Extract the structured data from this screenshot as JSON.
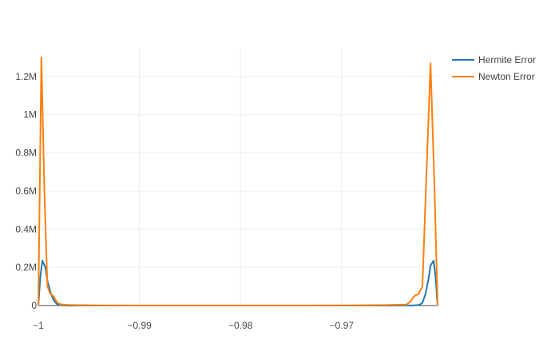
{
  "chart_data": {
    "type": "line",
    "title": "",
    "xlabel": "",
    "ylabel": "",
    "xlim": [
      -1.0,
      -0.9605
    ],
    "ylim": [
      0,
      1350000
    ],
    "grid": true,
    "legend_position": "top-right",
    "x_ticks": [
      {
        "value": -1.0,
        "label": "−1"
      },
      {
        "value": -0.99,
        "label": "−0.99"
      },
      {
        "value": -0.98,
        "label": "−0.98"
      },
      {
        "value": -0.97,
        "label": "−0.97"
      }
    ],
    "y_ticks": [
      {
        "value": 0,
        "label": "0"
      },
      {
        "value": 200000,
        "label": "0.2M"
      },
      {
        "value": 400000,
        "label": "0.4M"
      },
      {
        "value": 600000,
        "label": "0.6M"
      },
      {
        "value": 800000,
        "label": "0.8M"
      },
      {
        "value": 1000000,
        "label": "1M"
      },
      {
        "value": 1200000,
        "label": "1.2M"
      }
    ],
    "series": [
      {
        "name": "Hermite Error",
        "color": "#1f77b4",
        "x": [
          -1.0,
          -0.9998,
          -0.9996,
          -0.9993,
          -0.9991,
          -0.9988,
          -0.9985,
          -0.9982,
          -0.998,
          -0.9976,
          -0.997,
          -0.996,
          -0.994,
          -0.99,
          -0.98,
          -0.97,
          -0.965,
          -0.963,
          -0.9623,
          -0.962,
          -0.9617,
          -0.9614,
          -0.9612,
          -0.9609,
          -0.9607,
          -0.9605
        ],
        "y": [
          0,
          150000,
          235000,
          200000,
          130000,
          70000,
          30000,
          10000,
          3000,
          800,
          200,
          50,
          10,
          0,
          0,
          0,
          10,
          500,
          3000,
          15000,
          60000,
          140000,
          210000,
          235000,
          150000,
          0
        ]
      },
      {
        "name": "Newton Error",
        "color": "#ff7f0e",
        "x": [
          -1.0,
          -0.9997,
          -0.9994,
          -0.9991,
          -0.9988,
          -0.9985,
          -0.9982,
          -0.9979,
          -0.9976,
          -0.997,
          -0.996,
          -0.994,
          -0.99,
          -0.98,
          -0.97,
          -0.966,
          -0.9636,
          -0.9632,
          -0.9628,
          -0.9624,
          -0.962,
          -0.9616,
          -0.9612,
          -0.9608,
          -0.9605
        ],
        "y": [
          0,
          1300000,
          600000,
          100000,
          60000,
          50000,
          20000,
          8000,
          5000,
          3000,
          2000,
          1000,
          500,
          500,
          800,
          2000,
          5000,
          20000,
          50000,
          60000,
          100000,
          700000,
          1270000,
          600000,
          0
        ]
      }
    ]
  }
}
